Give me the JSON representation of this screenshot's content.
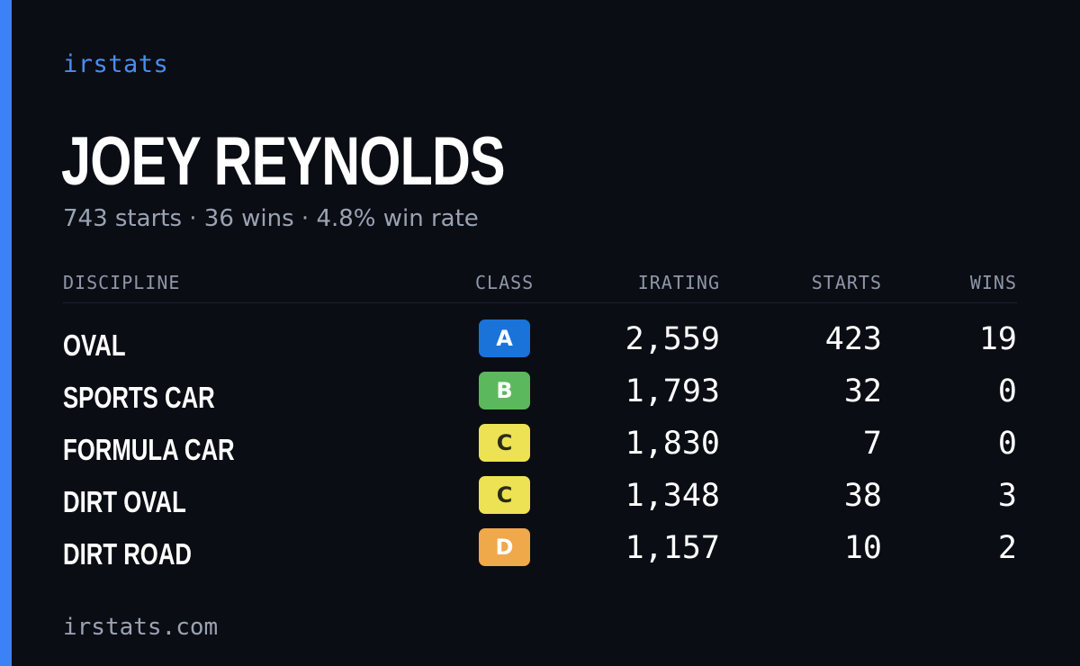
{
  "brand": "irstats",
  "player": {
    "name": "JOEY REYNOLDS",
    "summary": "743 starts · 36 wins · 4.8% win rate"
  },
  "table": {
    "headers": {
      "discipline": "DISCIPLINE",
      "class": "CLASS",
      "irating": "IRATING",
      "starts": "STARTS",
      "wins": "WINS"
    },
    "rows": [
      {
        "discipline": "OVAL",
        "class": "A",
        "class_color": "#1a73d9",
        "irating": "2,559",
        "starts": "423",
        "wins": "19"
      },
      {
        "discipline": "SPORTS CAR",
        "class": "B",
        "class_color": "#5cb85c",
        "irating": "1,793",
        "starts": "32",
        "wins": "0"
      },
      {
        "discipline": "FORMULA CAR",
        "class": "C",
        "class_color": "#ece254",
        "irating": "1,830",
        "starts": "7",
        "wins": "0"
      },
      {
        "discipline": "DIRT OVAL",
        "class": "C",
        "class_color": "#ece254",
        "irating": "1,348",
        "starts": "38",
        "wins": "3"
      },
      {
        "discipline": "DIRT ROAD",
        "class": "D",
        "class_color": "#efa84a",
        "irating": "1,157",
        "starts": "10",
        "wins": "2"
      }
    ]
  },
  "footer": "irstats.com",
  "colors": {
    "accent": "#3b82f6",
    "background": "#0b0d14"
  }
}
